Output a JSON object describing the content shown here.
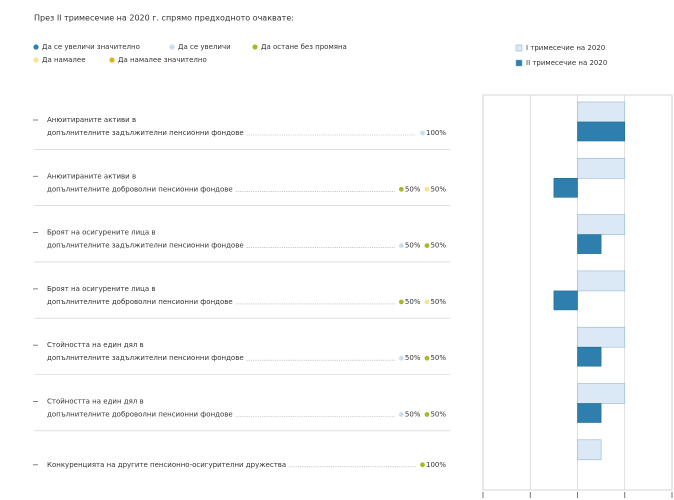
{
  "chart_data": {
    "type": "bar",
    "orientation": "horizontal",
    "title": "През II тримесечие на 2020 г. спрямо предходното очаквате:",
    "response_legend": [
      {
        "label": "Да се увеличи значително",
        "color": "#2e7fae"
      },
      {
        "label": "Да се увеличи",
        "color": "#c9def0"
      },
      {
        "label": "Да остане без промяна",
        "color": "#a9b826"
      },
      {
        "label": "Да намалее",
        "color": "#f3e596"
      },
      {
        "label": "Да намалее значително",
        "color": "#e6ae1e"
      }
    ],
    "categories": [
      [
        "Анюитираните активи в",
        "допълнителните задължителни пенсионни фондове"
      ],
      [
        "Анюитираните активи в",
        "допълнителните доброволни пенсионни фондове"
      ],
      [
        "Броят на осигурените лица в",
        "допълнителните задължителни пенсионни фондове"
      ],
      [
        "Броят на осигурените лица в",
        "допълнителните доброволни пенсионни фондове"
      ],
      [
        "Стойността на един дял в",
        "допълнителните задължителни пенсионни фондове"
      ],
      [
        "Стойността на един дял в",
        "допълнителните доброволни пенсионни фондове"
      ],
      [
        "Конкуренцията на другите пенсионно-осигурителни дружества"
      ]
    ],
    "responses": [
      [
        {
          "value": 100,
          "label": "100%",
          "color": "#c9def0"
        }
      ],
      [
        {
          "value": 50,
          "label": "50%",
          "color": "#a9b826"
        },
        {
          "value": 50,
          "label": "50%",
          "color": "#f3e596"
        }
      ],
      [
        {
          "value": 50,
          "label": "50%",
          "color": "#c9def0"
        },
        {
          "value": 50,
          "label": "50%",
          "color": "#a9b826"
        }
      ],
      [
        {
          "value": 50,
          "label": "50%",
          "color": "#a9b826"
        },
        {
          "value": 50,
          "label": "50%",
          "color": "#f3e596"
        }
      ],
      [
        {
          "value": 50,
          "label": "50%",
          "color": "#c9def0"
        },
        {
          "value": 50,
          "label": "50%",
          "color": "#a9b826"
        }
      ],
      [
        {
          "value": 50,
          "label": "50%",
          "color": "#c9def0"
        },
        {
          "value": 50,
          "label": "50%",
          "color": "#a9b826"
        }
      ],
      [
        {
          "value": 100,
          "label": "100%",
          "color": "#a9b826"
        }
      ]
    ],
    "series": [
      {
        "name": "I тримесечие на 2020",
        "color": "#dbe9f6",
        "values": [
          1,
          1,
          1,
          1,
          1,
          1,
          0.5
        ]
      },
      {
        "name": "II тримесечие на 2020",
        "color": "#2e7fae",
        "values": [
          1,
          -0.5,
          0.5,
          -0.5,
          0.5,
          0.5,
          null
        ]
      }
    ],
    "xlim": [
      -2,
      2
    ],
    "xticks": [
      -2,
      -1,
      0,
      1,
      2
    ],
    "grid": true
  }
}
